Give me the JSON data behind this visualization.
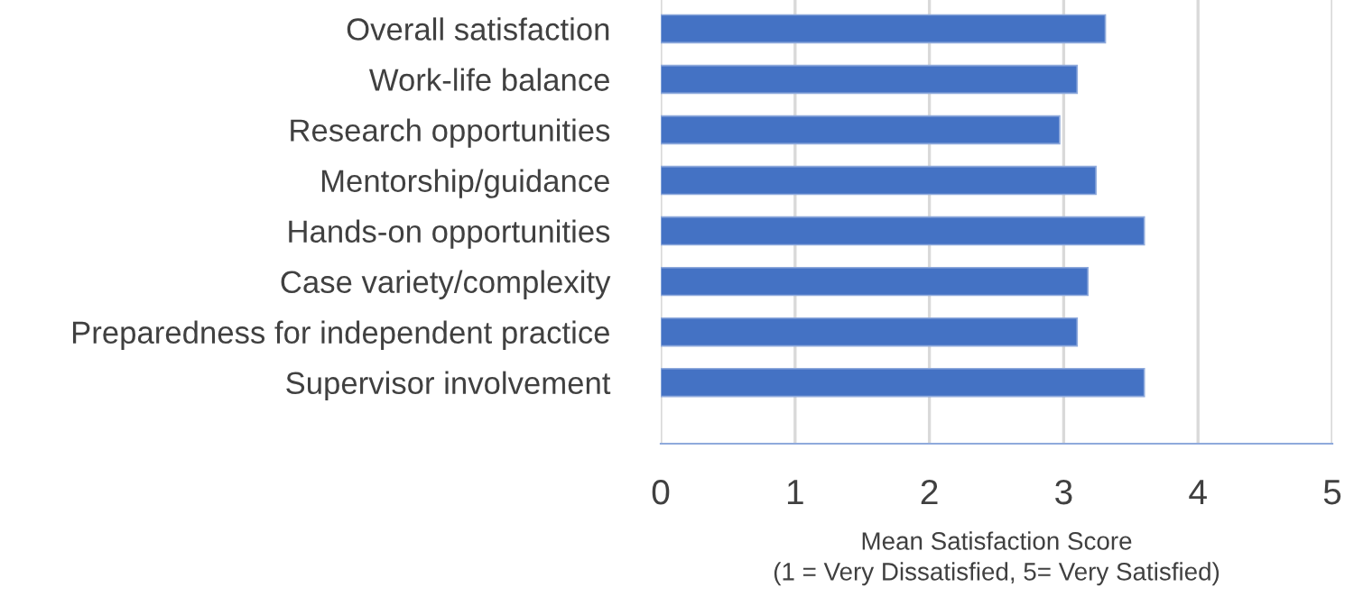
{
  "chart_data": {
    "type": "bar",
    "orientation": "horizontal",
    "xlabel": "Mean Satisfaction Score\n(1 = Very Dissatisfied, 5= Very Satisfied)",
    "categories": [
      "Overall satisfaction",
      "Work-life balance",
      "Research opportunities",
      "Mentorship/guidance",
      "Hands-on opportunities",
      "Case variety/complexity",
      "Preparedness for independent practice",
      "Supervisor involvement"
    ],
    "values": [
      3.31,
      3.1,
      2.97,
      3.24,
      3.6,
      3.18,
      3.1,
      3.6
    ],
    "color": "#4472c4",
    "xlim": [
      0,
      5
    ],
    "xticks": [
      0,
      1,
      2,
      3,
      4,
      5
    ],
    "grid": "x"
  }
}
